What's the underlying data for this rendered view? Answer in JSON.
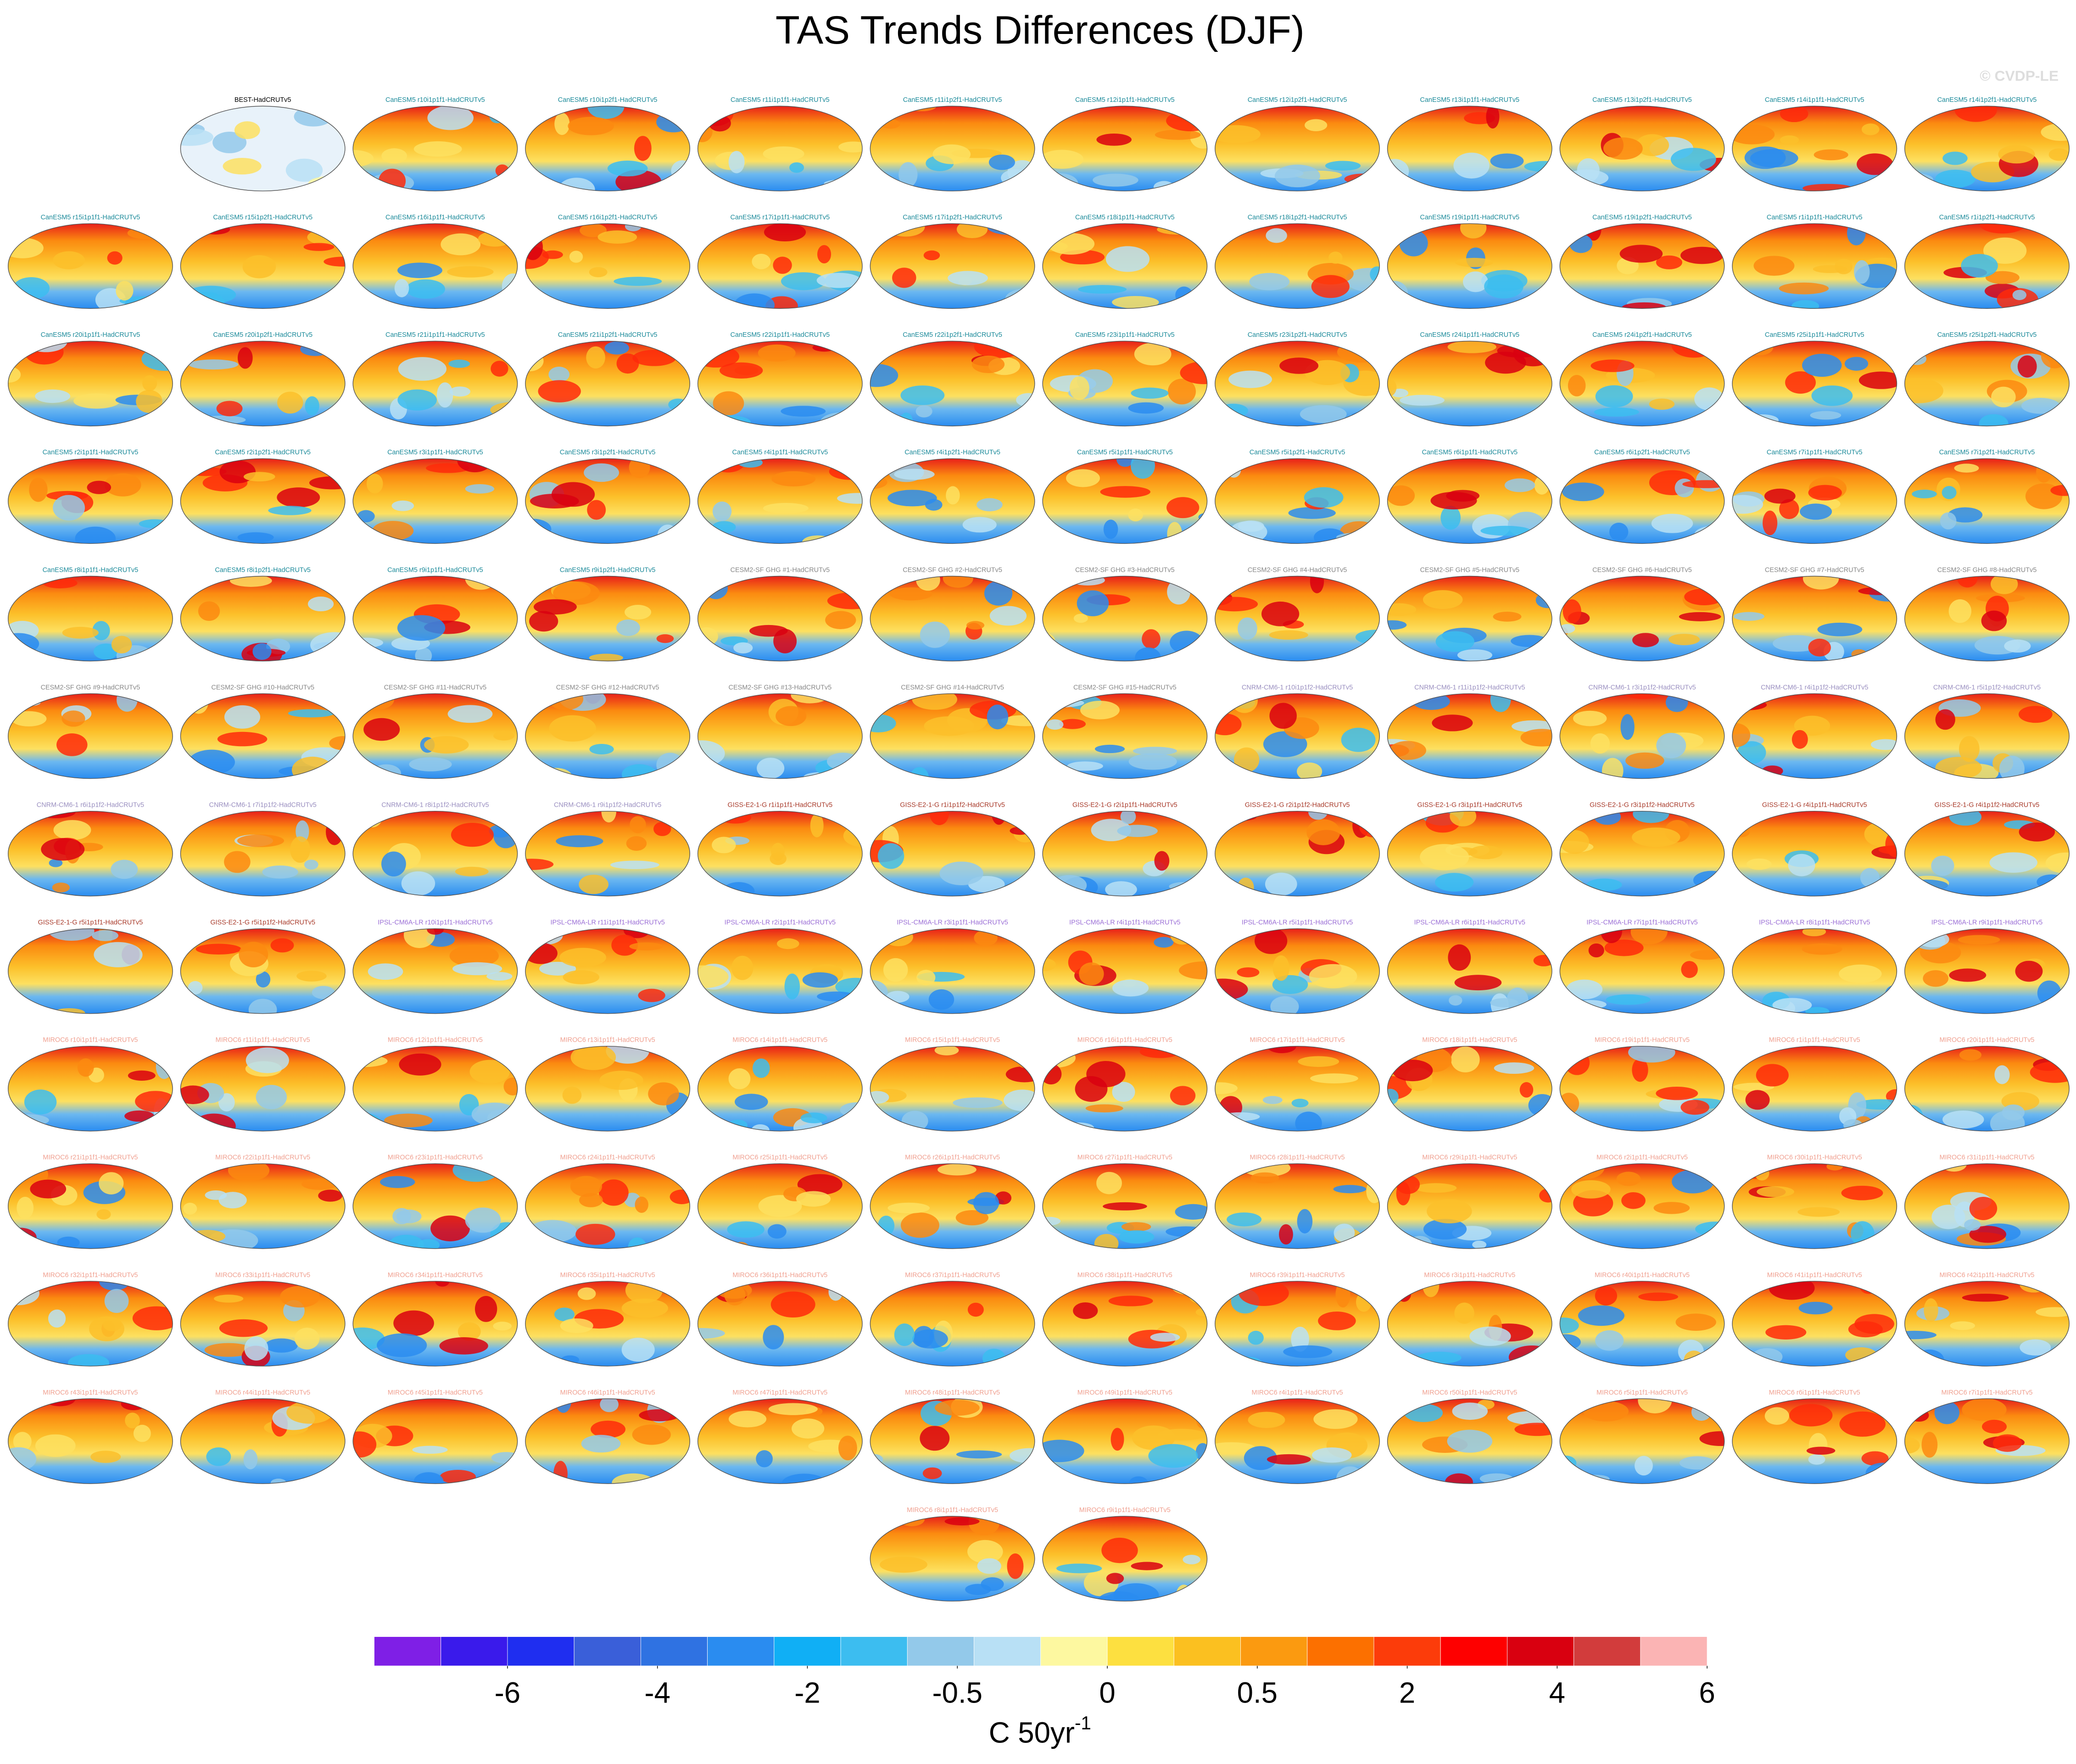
{
  "chart_data": {
    "type": "map-panels",
    "title": "TAS Trends Differences (DJF)",
    "watermark": "© CVDP-LE",
    "panels": [
      {
        "label": "BEST-HadCRUTv5",
        "color": "#000000"
      },
      {
        "label": "CanESM5 r10i1p1f1-HadCRUTv5",
        "color": "#1b8a9a"
      },
      {
        "label": "CanESM5 r10i1p2f1-HadCRUTv5",
        "color": "#1b8a9a"
      },
      {
        "label": "CanESM5 r11i1p1f1-HadCRUTv5",
        "color": "#1b8a9a"
      },
      {
        "label": "CanESM5 r11i1p2f1-HadCRUTv5",
        "color": "#1b8a9a"
      },
      {
        "label": "CanESM5 r12i1p1f1-HadCRUTv5",
        "color": "#1b8a9a"
      },
      {
        "label": "CanESM5 r12i1p2f1-HadCRUTv5",
        "color": "#1b8a9a"
      },
      {
        "label": "CanESM5 r13i1p1f1-HadCRUTv5",
        "color": "#1b8a9a"
      },
      {
        "label": "CanESM5 r13i1p2f1-HadCRUTv5",
        "color": "#1b8a9a"
      },
      {
        "label": "CanESM5 r14i1p1f1-HadCRUTv5",
        "color": "#1b8a9a"
      },
      {
        "label": "CanESM5 r14i1p2f1-HadCRUTv5",
        "color": "#1b8a9a"
      },
      {
        "label": "CanESM5 r15i1p1f1-HadCRUTv5",
        "color": "#1b8a9a"
      },
      {
        "label": "CanESM5 r15i1p2f1-HadCRUTv5",
        "color": "#1b8a9a"
      },
      {
        "label": "CanESM5 r16i1p1f1-HadCRUTv5",
        "color": "#1b8a9a"
      },
      {
        "label": "CanESM5 r16i1p2f1-HadCRUTv5",
        "color": "#1b8a9a"
      },
      {
        "label": "CanESM5 r17i1p1f1-HadCRUTv5",
        "color": "#1b8a9a"
      },
      {
        "label": "CanESM5 r17i1p2f1-HadCRUTv5",
        "color": "#1b8a9a"
      },
      {
        "label": "CanESM5 r18i1p1f1-HadCRUTv5",
        "color": "#1b8a9a"
      },
      {
        "label": "CanESM5 r18i1p2f1-HadCRUTv5",
        "color": "#1b8a9a"
      },
      {
        "label": "CanESM5 r19i1p1f1-HadCRUTv5",
        "color": "#1b8a9a"
      },
      {
        "label": "CanESM5 r19i1p2f1-HadCRUTv5",
        "color": "#1b8a9a"
      },
      {
        "label": "CanESM5 r1i1p1f1-HadCRUTv5",
        "color": "#1b8a9a"
      },
      {
        "label": "CanESM5 r1i1p2f1-HadCRUTv5",
        "color": "#1b8a9a"
      },
      {
        "label": "CanESM5 r20i1p1f1-HadCRUTv5",
        "color": "#1b8a9a"
      },
      {
        "label": "CanESM5 r20i1p2f1-HadCRUTv5",
        "color": "#1b8a9a"
      },
      {
        "label": "CanESM5 r21i1p1f1-HadCRUTv5",
        "color": "#1b8a9a"
      },
      {
        "label": "CanESM5 r21i1p2f1-HadCRUTv5",
        "color": "#1b8a9a"
      },
      {
        "label": "CanESM5 r22i1p1f1-HadCRUTv5",
        "color": "#1b8a9a"
      },
      {
        "label": "CanESM5 r22i1p2f1-HadCRUTv5",
        "color": "#1b8a9a"
      },
      {
        "label": "CanESM5 r23i1p1f1-HadCRUTv5",
        "color": "#1b8a9a"
      },
      {
        "label": "CanESM5 r23i1p2f1-HadCRUTv5",
        "color": "#1b8a9a"
      },
      {
        "label": "CanESM5 r24i1p1f1-HadCRUTv5",
        "color": "#1b8a9a"
      },
      {
        "label": "CanESM5 r24i1p2f1-HadCRUTv5",
        "color": "#1b8a9a"
      },
      {
        "label": "CanESM5 r25i1p1f1-HadCRUTv5",
        "color": "#1b8a9a"
      },
      {
        "label": "CanESM5 r25i1p2f1-HadCRUTv5",
        "color": "#1b8a9a"
      },
      {
        "label": "CanESM5 r2i1p1f1-HadCRUTv5",
        "color": "#1b8a9a"
      },
      {
        "label": "CanESM5 r2i1p2f1-HadCRUTv5",
        "color": "#1b8a9a"
      },
      {
        "label": "CanESM5 r3i1p1f1-HadCRUTv5",
        "color": "#1b8a9a"
      },
      {
        "label": "CanESM5 r3i1p2f1-HadCRUTv5",
        "color": "#1b8a9a"
      },
      {
        "label": "CanESM5 r4i1p1f1-HadCRUTv5",
        "color": "#1b8a9a"
      },
      {
        "label": "CanESM5 r4i1p2f1-HadCRUTv5",
        "color": "#1b8a9a"
      },
      {
        "label": "CanESM5 r5i1p1f1-HadCRUTv5",
        "color": "#1b8a9a"
      },
      {
        "label": "CanESM5 r5i1p2f1-HadCRUTv5",
        "color": "#1b8a9a"
      },
      {
        "label": "CanESM5 r6i1p1f1-HadCRUTv5",
        "color": "#1b8a9a"
      },
      {
        "label": "CanESM5 r6i1p2f1-HadCRUTv5",
        "color": "#1b8a9a"
      },
      {
        "label": "CanESM5 r7i1p1f1-HadCRUTv5",
        "color": "#1b8a9a"
      },
      {
        "label": "CanESM5 r7i1p2f1-HadCRUTv5",
        "color": "#1b8a9a"
      },
      {
        "label": "CanESM5 r8i1p1f1-HadCRUTv5",
        "color": "#1b8a9a"
      },
      {
        "label": "CanESM5 r8i1p2f1-HadCRUTv5",
        "color": "#1b8a9a"
      },
      {
        "label": "CanESM5 r9i1p1f1-HadCRUTv5",
        "color": "#1b8a9a"
      },
      {
        "label": "CanESM5 r9i1p2f1-HadCRUTv5",
        "color": "#1b8a9a"
      },
      {
        "label": "CESM2-SF GHG #1-HadCRUTv5",
        "color": "#888888"
      },
      {
        "label": "CESM2-SF GHG #2-HadCRUTv5",
        "color": "#888888"
      },
      {
        "label": "CESM2-SF GHG #3-HadCRUTv5",
        "color": "#888888"
      },
      {
        "label": "CESM2-SF GHG #4-HadCRUTv5",
        "color": "#888888"
      },
      {
        "label": "CESM2-SF GHG #5-HadCRUTv5",
        "color": "#888888"
      },
      {
        "label": "CESM2-SF GHG #6-HadCRUTv5",
        "color": "#888888"
      },
      {
        "label": "CESM2-SF GHG #7-HadCRUTv5",
        "color": "#888888"
      },
      {
        "label": "CESM2-SF GHG #8-HadCRUTv5",
        "color": "#888888"
      },
      {
        "label": "CESM2-SF GHG #9-HadCRUTv5",
        "color": "#888888"
      },
      {
        "label": "CESM2-SF GHG #10-HadCRUTv5",
        "color": "#888888"
      },
      {
        "label": "CESM2-SF GHG #11-HadCRUTv5",
        "color": "#888888"
      },
      {
        "label": "CESM2-SF GHG #12-HadCRUTv5",
        "color": "#888888"
      },
      {
        "label": "CESM2-SF GHG #13-HadCRUTv5",
        "color": "#888888"
      },
      {
        "label": "CESM2-SF GHG #14-HadCRUTv5",
        "color": "#888888"
      },
      {
        "label": "CESM2-SF GHG #15-HadCRUTv5",
        "color": "#888888"
      },
      {
        "label": "CNRM-CM6-1 r10i1p1f2-HadCRUTv5",
        "color": "#9a8fc0"
      },
      {
        "label": "CNRM-CM6-1 r11i1p1f2-HadCRUTv5",
        "color": "#9a8fc0"
      },
      {
        "label": "CNRM-CM6-1 r3i1p1f2-HadCRUTv5",
        "color": "#9a8fc0"
      },
      {
        "label": "CNRM-CM6-1 r4i1p1f2-HadCRUTv5",
        "color": "#9a8fc0"
      },
      {
        "label": "CNRM-CM6-1 r5i1p1f2-HadCRUTv5",
        "color": "#9a8fc0"
      },
      {
        "label": "CNRM-CM6-1 r6i1p1f2-HadCRUTv5",
        "color": "#9a8fc0"
      },
      {
        "label": "CNRM-CM6-1 r7i1p1f2-HadCRUTv5",
        "color": "#9a8fc0"
      },
      {
        "label": "CNRM-CM6-1 r8i1p1f2-HadCRUTv5",
        "color": "#9a8fc0"
      },
      {
        "label": "CNRM-CM6-1 r9i1p1f2-HadCRUTv5",
        "color": "#9a8fc0"
      },
      {
        "label": "GISS-E2-1-G r1i1p1f1-HadCRUTv5",
        "color": "#a83a2a"
      },
      {
        "label": "GISS-E2-1-G r1i1p1f2-HadCRUTv5",
        "color": "#a83a2a"
      },
      {
        "label": "GISS-E2-1-G r2i1p1f1-HadCRUTv5",
        "color": "#a83a2a"
      },
      {
        "label": "GISS-E2-1-G r2i1p1f2-HadCRUTv5",
        "color": "#a83a2a"
      },
      {
        "label": "GISS-E2-1-G r3i1p1f1-HadCRUTv5",
        "color": "#a83a2a"
      },
      {
        "label": "GISS-E2-1-G r3i1p1f2-HadCRUTv5",
        "color": "#a83a2a"
      },
      {
        "label": "GISS-E2-1-G r4i1p1f1-HadCRUTv5",
        "color": "#a83a2a"
      },
      {
        "label": "GISS-E2-1-G r4i1p1f2-HadCRUTv5",
        "color": "#a83a2a"
      },
      {
        "label": "GISS-E2-1-G r5i1p1f1-HadCRUTv5",
        "color": "#a83a2a"
      },
      {
        "label": "GISS-E2-1-G r5i1p1f2-HadCRUTv5",
        "color": "#a83a2a"
      },
      {
        "label": "IPSL-CM6A-LR r10i1p1f1-HadCRUTv5",
        "color": "#9b6fd6"
      },
      {
        "label": "IPSL-CM6A-LR r11i1p1f1-HadCRUTv5",
        "color": "#9b6fd6"
      },
      {
        "label": "IPSL-CM6A-LR r2i1p1f1-HadCRUTv5",
        "color": "#9b6fd6"
      },
      {
        "label": "IPSL-CM6A-LR r3i1p1f1-HadCRUTv5",
        "color": "#9b6fd6"
      },
      {
        "label": "IPSL-CM6A-LR r4i1p1f1-HadCRUTv5",
        "color": "#9b6fd6"
      },
      {
        "label": "IPSL-CM6A-LR r5i1p1f1-HadCRUTv5",
        "color": "#9b6fd6"
      },
      {
        "label": "IPSL-CM6A-LR r6i1p1f1-HadCRUTv5",
        "color": "#9b6fd6"
      },
      {
        "label": "IPSL-CM6A-LR r7i1p1f1-HadCRUTv5",
        "color": "#9b6fd6"
      },
      {
        "label": "IPSL-CM6A-LR r8i1p1f1-HadCRUTv5",
        "color": "#9b6fd6"
      },
      {
        "label": "IPSL-CM6A-LR r9i1p1f1-HadCRUTv5",
        "color": "#9b6fd6"
      },
      {
        "label": "MIROC6 r10i1p1f1-HadCRUTv5",
        "color": "#f0a090"
      },
      {
        "label": "MIROC6 r11i1p1f1-HadCRUTv5",
        "color": "#f0a090"
      },
      {
        "label": "MIROC6 r12i1p1f1-HadCRUTv5",
        "color": "#f0a090"
      },
      {
        "label": "MIROC6 r13i1p1f1-HadCRUTv5",
        "color": "#f0a090"
      },
      {
        "label": "MIROC6 r14i1p1f1-HadCRUTv5",
        "color": "#f0a090"
      },
      {
        "label": "MIROC6 r15i1p1f1-HadCRUTv5",
        "color": "#f0a090"
      },
      {
        "label": "MIROC6 r16i1p1f1-HadCRUTv5",
        "color": "#f0a090"
      },
      {
        "label": "MIROC6 r17i1p1f1-HadCRUTv5",
        "color": "#f0a090"
      },
      {
        "label": "MIROC6 r18i1p1f1-HadCRUTv5",
        "color": "#f0a090"
      },
      {
        "label": "MIROC6 r19i1p1f1-HadCRUTv5",
        "color": "#f0a090"
      },
      {
        "label": "MIROC6 r1i1p1f1-HadCRUTv5",
        "color": "#f0a090"
      },
      {
        "label": "MIROC6 r20i1p1f1-HadCRUTv5",
        "color": "#f0a090"
      },
      {
        "label": "MIROC6 r21i1p1f1-HadCRUTv5",
        "color": "#f0a090"
      },
      {
        "label": "MIROC6 r22i1p1f1-HadCRUTv5",
        "color": "#f0a090"
      },
      {
        "label": "MIROC6 r23i1p1f1-HadCRUTv5",
        "color": "#f0a090"
      },
      {
        "label": "MIROC6 r24i1p1f1-HadCRUTv5",
        "color": "#f0a090"
      },
      {
        "label": "MIROC6 r25i1p1f1-HadCRUTv5",
        "color": "#f0a090"
      },
      {
        "label": "MIROC6 r26i1p1f1-HadCRUTv5",
        "color": "#f0a090"
      },
      {
        "label": "MIROC6 r27i1p1f1-HadCRUTv5",
        "color": "#f0a090"
      },
      {
        "label": "MIROC6 r28i1p1f1-HadCRUTv5",
        "color": "#f0a090"
      },
      {
        "label": "MIROC6 r29i1p1f1-HadCRUTv5",
        "color": "#f0a090"
      },
      {
        "label": "MIROC6 r2i1p1f1-HadCRUTv5",
        "color": "#f0a090"
      },
      {
        "label": "MIROC6 r30i1p1f1-HadCRUTv5",
        "color": "#f0a090"
      },
      {
        "label": "MIROC6 r31i1p1f1-HadCRUTv5",
        "color": "#f0a090"
      },
      {
        "label": "MIROC6 r32i1p1f1-HadCRUTv5",
        "color": "#f0a090"
      },
      {
        "label": "MIROC6 r33i1p1f1-HadCRUTv5",
        "color": "#f0a090"
      },
      {
        "label": "MIROC6 r34i1p1f1-HadCRUTv5",
        "color": "#f0a090"
      },
      {
        "label": "MIROC6 r35i1p1f1-HadCRUTv5",
        "color": "#f0a090"
      },
      {
        "label": "MIROC6 r36i1p1f1-HadCRUTv5",
        "color": "#f0a090"
      },
      {
        "label": "MIROC6 r37i1p1f1-HadCRUTv5",
        "color": "#f0a090"
      },
      {
        "label": "MIROC6 r38i1p1f1-HadCRUTv5",
        "color": "#f0a090"
      },
      {
        "label": "MIROC6 r39i1p1f1-HadCRUTv5",
        "color": "#f0a090"
      },
      {
        "label": "MIROC6 r3i1p1f1-HadCRUTv5",
        "color": "#f0a090"
      },
      {
        "label": "MIROC6 r40i1p1f1-HadCRUTv5",
        "color": "#f0a090"
      },
      {
        "label": "MIROC6 r41i1p1f1-HadCRUTv5",
        "color": "#f0a090"
      },
      {
        "label": "MIROC6 r42i1p1f1-HadCRUTv5",
        "color": "#f0a090"
      },
      {
        "label": "MIROC6 r43i1p1f1-HadCRUTv5",
        "color": "#f0a090"
      },
      {
        "label": "MIROC6 r44i1p1f1-HadCRUTv5",
        "color": "#f0a090"
      },
      {
        "label": "MIROC6 r45i1p1f1-HadCRUTv5",
        "color": "#f0a090"
      },
      {
        "label": "MIROC6 r46i1p1f1-HadCRUTv5",
        "color": "#f0a090"
      },
      {
        "label": "MIROC6 r47i1p1f1-HadCRUTv5",
        "color": "#f0a090"
      },
      {
        "label": "MIROC6 r48i1p1f1-HadCRUTv5",
        "color": "#f0a090"
      },
      {
        "label": "MIROC6 r49i1p1f1-HadCRUTv5",
        "color": "#f0a090"
      },
      {
        "label": "MIROC6 r4i1p1f1-HadCRUTv5",
        "color": "#f0a090"
      },
      {
        "label": "MIROC6 r50i1p1f1-HadCRUTv5",
        "color": "#f0a090"
      },
      {
        "label": "MIROC6 r5i1p1f1-HadCRUTv5",
        "color": "#f0a090"
      },
      {
        "label": "MIROC6 r6i1p1f1-HadCRUTv5",
        "color": "#f0a090"
      },
      {
        "label": "MIROC6 r7i1p1f1-HadCRUTv5",
        "color": "#f0a090"
      },
      {
        "label": "MIROC6 r8i1p1f1-HadCRUTv5",
        "color": "#f0a090"
      },
      {
        "label": "MIROC6 r9i1p1f1-HadCRUTv5",
        "color": "#f0a090"
      }
    ],
    "colorbar": {
      "colors": [
        "#7f1fe6",
        "#3a1aeb",
        "#1f2ef0",
        "#3a5fd9",
        "#2f72e2",
        "#2a8cf0",
        "#10aff5",
        "#3cbdf0",
        "#93c9ea",
        "#b8e0f5",
        "#fdf8a0",
        "#fde040",
        "#fbc020",
        "#fb9a10",
        "#fc7000",
        "#fc3c0a",
        "#fe0000",
        "#d90010",
        "#d23c3c",
        "#fbb4b4"
      ],
      "ticks": [
        -6,
        -4,
        -2,
        -0.5,
        0,
        0.5,
        2,
        4,
        6
      ],
      "title": "C 50yr",
      "title_superscript": "-1"
    }
  }
}
